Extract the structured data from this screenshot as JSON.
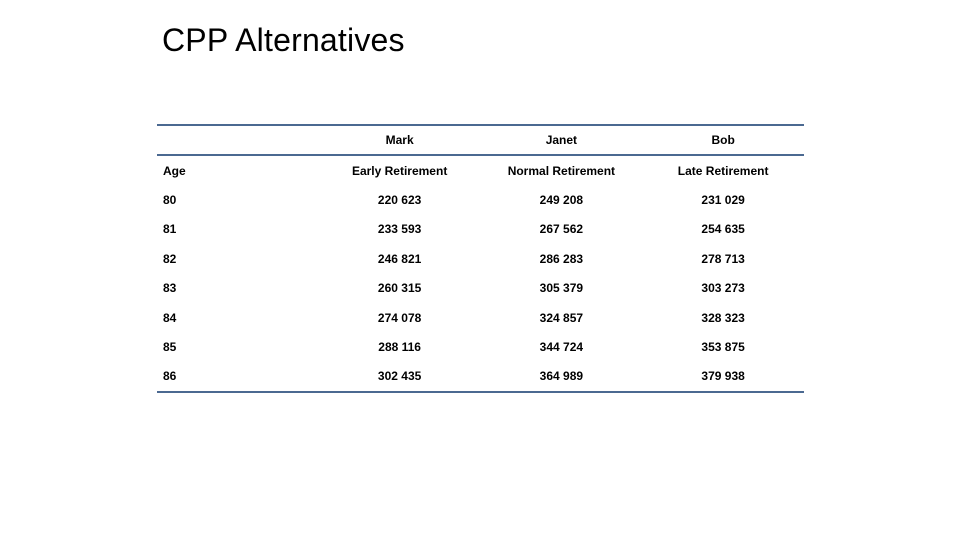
{
  "slide": {
    "title": "CPP Alternatives"
  },
  "colors": {
    "rule": "#4b6991",
    "text": "#000000",
    "background": "#ffffff"
  },
  "table": {
    "person_header": [
      "",
      "Mark",
      "Janet",
      "Bob"
    ],
    "column_header": [
      "Age",
      "Early Retirement",
      "Normal Retirement",
      "Late Retirement"
    ],
    "rows": [
      [
        "80",
        "220 623",
        "249 208",
        "231 029"
      ],
      [
        "81",
        "233 593",
        "267 562",
        "254 635"
      ],
      [
        "82",
        "246 821",
        "286 283",
        "278 713"
      ],
      [
        "83",
        "260 315",
        "305 379",
        "303 273"
      ],
      [
        "84",
        "274 078",
        "324 857",
        "328 323"
      ],
      [
        "85",
        "288 116",
        "344 724",
        "353 875"
      ],
      [
        "86",
        "302 435",
        "364 989",
        "379 938"
      ]
    ]
  }
}
